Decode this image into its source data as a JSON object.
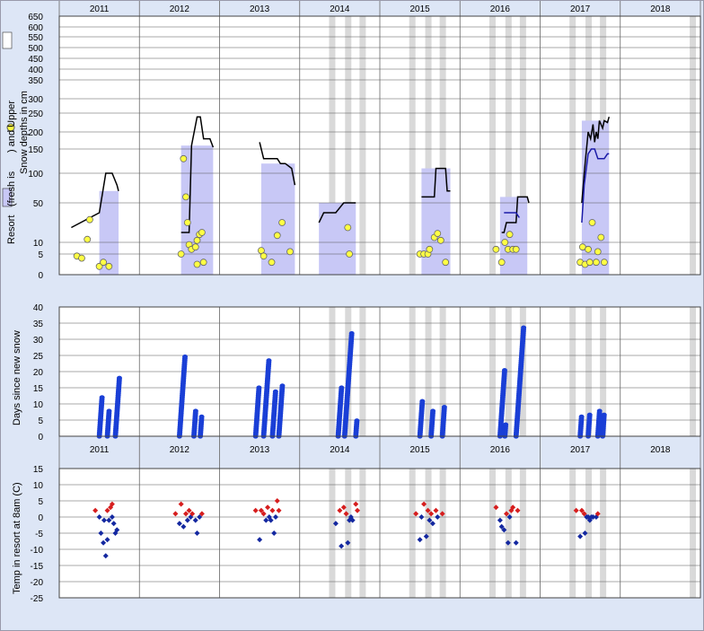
{
  "chart_data": {
    "type": "scatter",
    "years": [
      "2011",
      "2012",
      "2013",
      "2014",
      "2015",
      "2016",
      "2017",
      "2018"
    ],
    "colors": {
      "background": "#dde6f6",
      "plot": "#ffffff",
      "resort_fill": "#c8c8f6",
      "grey_band": "#d9d9d9",
      "fresh_marker": "#ffff44",
      "days_marker": "#1a3fd6",
      "temp_cold": "#1428a0",
      "temp_warm": "#d61e1e"
    },
    "snow_panel": {
      "ylabel_line1": "Resort",
      "ylabel_line2": "(fresh is",
      "ylabel_line3": ") and Upper",
      "ylabel_line4": "Snow depths in cm",
      "ticks": [
        "650",
        "600",
        "550",
        "500",
        "450",
        "400",
        "350",
        "300",
        "250",
        "200",
        "150",
        "100",
        "50",
        "10",
        "5",
        "0"
      ],
      "tick_values": [
        650,
        600,
        550,
        500,
        450,
        400,
        350,
        300,
        250,
        200,
        150,
        100,
        50,
        10,
        5,
        0
      ],
      "depth_lines": [
        {
          "name": "resort",
          "color": "#000000",
          "segments": [
            [
              [
                0.15,
                25
              ],
              [
                0.5,
                40
              ],
              [
                0.58,
                100
              ],
              [
                0.66,
                100
              ],
              [
                0.72,
                80
              ],
              [
                0.74,
                70
              ]
            ],
            [
              [
                0.52,
                20
              ],
              [
                0.62,
                20
              ],
              [
                0.65,
                160
              ],
              [
                0.72,
                240
              ],
              [
                0.76,
                240
              ],
              [
                0.8,
                180
              ],
              [
                0.88,
                180
              ],
              [
                0.92,
                155
              ]
            ],
            [
              [
                0.5,
                170
              ],
              [
                0.55,
                130
              ],
              [
                0.62,
                130
              ],
              [
                0.72,
                130
              ],
              [
                0.76,
                120
              ],
              [
                0.82,
                120
              ],
              [
                0.9,
                110
              ],
              [
                0.94,
                80
              ]
            ],
            [
              [
                0.24,
                30
              ],
              [
                0.3,
                40
              ],
              [
                0.45,
                40
              ],
              [
                0.55,
                50
              ],
              [
                0.7,
                50
              ]
            ],
            [
              [
                0.52,
                60
              ],
              [
                0.62,
                60
              ],
              [
                0.68,
                60
              ],
              [
                0.7,
                110
              ],
              [
                0.82,
                110
              ],
              [
                0.84,
                70
              ],
              [
                0.88,
                70
              ]
            ],
            [
              [
                0.52,
                20
              ],
              [
                0.55,
                20
              ],
              [
                0.58,
                30
              ],
              [
                0.7,
                30
              ],
              [
                0.72,
                60
              ],
              [
                0.8,
                60
              ],
              [
                0.84,
                60
              ],
              [
                0.86,
                50
              ]
            ],
            [
              [
                0.52,
                50
              ],
              [
                0.55,
                100
              ],
              [
                0.6,
                200
              ],
              [
                0.63,
                180
              ],
              [
                0.66,
                220
              ],
              [
                0.68,
                170
              ],
              [
                0.7,
                200
              ],
              [
                0.72,
                180
              ],
              [
                0.74,
                230
              ],
              [
                0.78,
                210
              ],
              [
                0.8,
                230
              ],
              [
                0.84,
                225
              ],
              [
                0.86,
                240
              ]
            ]
          ]
        },
        {
          "name": "upper",
          "color": "#1a1aa8",
          "segments": [
            [
              [
                0.55,
                40
              ],
              [
                0.7,
                40
              ],
              [
                0.74,
                35
              ]
            ],
            [
              [
                0.52,
                30
              ],
              [
                0.55,
                80
              ],
              [
                0.6,
                140
              ],
              [
                0.64,
                150
              ],
              [
                0.68,
                150
              ],
              [
                0.72,
                130
              ],
              [
                0.8,
                130
              ],
              [
                0.84,
                140
              ],
              [
                0.86,
                140
              ]
            ]
          ]
        }
      ],
      "fresh_points": [
        [
          [
            0.22,
            4.5
          ],
          [
            0.28,
            4
          ],
          [
            0.35,
            13
          ],
          [
            0.38,
            33
          ],
          [
            0.5,
            2
          ],
          [
            0.55,
            3
          ],
          [
            0.62,
            2
          ]
        ],
        [
          [
            0.52,
            5
          ],
          [
            0.55,
            130
          ],
          [
            0.58,
            60
          ],
          [
            0.6,
            30
          ],
          [
            0.62,
            9
          ],
          [
            0.65,
            7
          ],
          [
            0.7,
            8
          ],
          [
            0.72,
            12
          ],
          [
            0.75,
            18
          ],
          [
            0.78,
            20
          ],
          [
            0.72,
            2.5
          ],
          [
            0.8,
            3
          ]
        ],
        [
          [
            0.52,
            6.5
          ],
          [
            0.55,
            4.5
          ],
          [
            0.65,
            3
          ],
          [
            0.72,
            17
          ],
          [
            0.78,
            30
          ],
          [
            0.88,
            6
          ]
        ],
        [
          [
            0.6,
            25
          ],
          [
            0.62,
            5
          ]
        ],
        [
          [
            0.5,
            5
          ],
          [
            0.55,
            5
          ],
          [
            0.6,
            5
          ],
          [
            0.62,
            7
          ],
          [
            0.68,
            15
          ],
          [
            0.72,
            19
          ],
          [
            0.76,
            12
          ],
          [
            0.82,
            3
          ]
        ],
        [
          [
            0.45,
            7
          ],
          [
            0.52,
            3
          ],
          [
            0.56,
            10
          ],
          [
            0.6,
            7
          ],
          [
            0.62,
            18
          ],
          [
            0.66,
            7
          ],
          [
            0.7,
            7
          ]
        ],
        [
          [
            0.5,
            3
          ],
          [
            0.53,
            8
          ],
          [
            0.56,
            2.5
          ],
          [
            0.6,
            7
          ],
          [
            0.62,
            3
          ],
          [
            0.65,
            30
          ],
          [
            0.7,
            3
          ],
          [
            0.72,
            6
          ],
          [
            0.76,
            15
          ],
          [
            0.8,
            3
          ]
        ]
      ]
    },
    "days_panel": {
      "ylabel": "Days since new snow",
      "ticks": [
        "40",
        "35",
        "30",
        "25",
        "20",
        "15",
        "10",
        "5",
        "0"
      ],
      "tick_values": [
        40,
        35,
        30,
        25,
        20,
        15,
        10,
        5,
        0
      ],
      "ylim": [
        0,
        40
      ],
      "runs": [
        [
          [
            0.5,
            0,
            12
          ],
          [
            0.6,
            0,
            8
          ],
          [
            0.7,
            0,
            18
          ]
        ],
        [
          [
            0.5,
            0,
            25
          ],
          [
            0.68,
            0,
            8
          ],
          [
            0.76,
            0,
            6
          ]
        ],
        [
          [
            0.45,
            0,
            15
          ],
          [
            0.55,
            0,
            24
          ],
          [
            0.66,
            0,
            14
          ],
          [
            0.74,
            0,
            16
          ]
        ],
        [
          [
            0.48,
            0,
            15
          ],
          [
            0.56,
            0,
            32
          ],
          [
            0.7,
            0,
            5
          ]
        ],
        [
          [
            0.5,
            0,
            11
          ],
          [
            0.64,
            0,
            8
          ],
          [
            0.78,
            0,
            9
          ]
        ],
        [
          [
            0.5,
            0,
            21
          ],
          [
            0.56,
            0,
            4
          ],
          [
            0.7,
            0,
            34
          ]
        ],
        [
          [
            0.5,
            0,
            6
          ],
          [
            0.6,
            0,
            7
          ],
          [
            0.72,
            0,
            8
          ],
          [
            0.78,
            0,
            7
          ]
        ]
      ]
    },
    "temp_panel": {
      "ylabel": "Temp in resort at 8am (C)",
      "ticks": [
        "15",
        "10",
        "5",
        "0",
        "-5",
        "-10",
        "-15",
        "-20",
        "-25"
      ],
      "tick_values": [
        15,
        10,
        5,
        0,
        -5,
        -10,
        -15,
        -20,
        -25
      ],
      "ylim": [
        -25,
        15
      ],
      "points": [
        [
          [
            0.45,
            2
          ],
          [
            0.5,
            0
          ],
          [
            0.52,
            -5
          ],
          [
            0.55,
            -8
          ],
          [
            0.58,
            -12
          ],
          [
            0.6,
            2
          ],
          [
            0.62,
            -1
          ],
          [
            0.64,
            3
          ],
          [
            0.66,
            4
          ],
          [
            0.68,
            -2
          ],
          [
            0.7,
            -5
          ],
          [
            0.72,
            -4
          ],
          [
            0.56,
            -1
          ],
          [
            0.6,
            -7
          ],
          [
            0.66,
            0
          ]
        ],
        [
          [
            0.45,
            1
          ],
          [
            0.5,
            -2
          ],
          [
            0.52,
            4
          ],
          [
            0.55,
            -3
          ],
          [
            0.58,
            1
          ],
          [
            0.6,
            -1
          ],
          [
            0.62,
            2
          ],
          [
            0.64,
            0
          ],
          [
            0.66,
            1
          ],
          [
            0.7,
            -1
          ],
          [
            0.72,
            -5
          ],
          [
            0.75,
            0
          ],
          [
            0.78,
            1
          ]
        ],
        [
          [
            0.45,
            2
          ],
          [
            0.5,
            -7
          ],
          [
            0.52,
            2
          ],
          [
            0.55,
            1
          ],
          [
            0.58,
            -1
          ],
          [
            0.6,
            3
          ],
          [
            0.62,
            0
          ],
          [
            0.64,
            -1
          ],
          [
            0.66,
            2
          ],
          [
            0.68,
            -5
          ],
          [
            0.72,
            5
          ],
          [
            0.74,
            2
          ],
          [
            0.7,
            0
          ]
        ],
        [
          [
            0.45,
            -2
          ],
          [
            0.5,
            2
          ],
          [
            0.52,
            -9
          ],
          [
            0.55,
            3
          ],
          [
            0.58,
            1
          ],
          [
            0.6,
            -8
          ],
          [
            0.62,
            -1
          ],
          [
            0.64,
            0
          ],
          [
            0.66,
            -1
          ],
          [
            0.7,
            4
          ],
          [
            0.72,
            2
          ]
        ],
        [
          [
            0.45,
            1
          ],
          [
            0.5,
            -7
          ],
          [
            0.52,
            0
          ],
          [
            0.55,
            4
          ],
          [
            0.58,
            -6
          ],
          [
            0.6,
            2
          ],
          [
            0.62,
            -1
          ],
          [
            0.64,
            1
          ],
          [
            0.66,
            -2
          ],
          [
            0.7,
            2
          ],
          [
            0.72,
            0
          ],
          [
            0.78,
            1
          ]
        ],
        [
          [
            0.45,
            3
          ],
          [
            0.5,
            -1
          ],
          [
            0.52,
            -3
          ],
          [
            0.55,
            -4
          ],
          [
            0.58,
            1
          ],
          [
            0.6,
            -8
          ],
          [
            0.62,
            0
          ],
          [
            0.64,
            2
          ],
          [
            0.66,
            3
          ],
          [
            0.7,
            -8
          ],
          [
            0.72,
            2
          ]
        ],
        [
          [
            0.45,
            2
          ],
          [
            0.5,
            -6
          ],
          [
            0.52,
            2
          ],
          [
            0.55,
            1
          ],
          [
            0.58,
            0
          ],
          [
            0.6,
            0
          ],
          [
            0.62,
            -1
          ],
          [
            0.64,
            0
          ],
          [
            0.66,
            0
          ],
          [
            0.7,
            0
          ],
          [
            0.72,
            1
          ],
          [
            0.56,
            -5
          ]
        ]
      ]
    },
    "grey_bands": {
      "2014": [
        0.4,
        0.6,
        0.78
      ],
      "2015": [
        0.4,
        0.6,
        0.78
      ],
      "2016": [
        0.4,
        0.6,
        0.78
      ],
      "2017": [
        0.4,
        0.6,
        0.78
      ],
      "2018": [
        0.9
      ]
    },
    "resort_fill_bands": [
      [
        0.5,
        0.74
      ],
      [
        0.52,
        0.92
      ],
      [
        0.52,
        0.94
      ],
      [
        0.24,
        0.7
      ],
      [
        0.52,
        0.88
      ],
      [
        0.5,
        0.84
      ],
      [
        0.52,
        0.86
      ]
    ],
    "fill_heights": [
      70,
      160,
      120,
      50,
      110,
      60,
      230
    ]
  }
}
